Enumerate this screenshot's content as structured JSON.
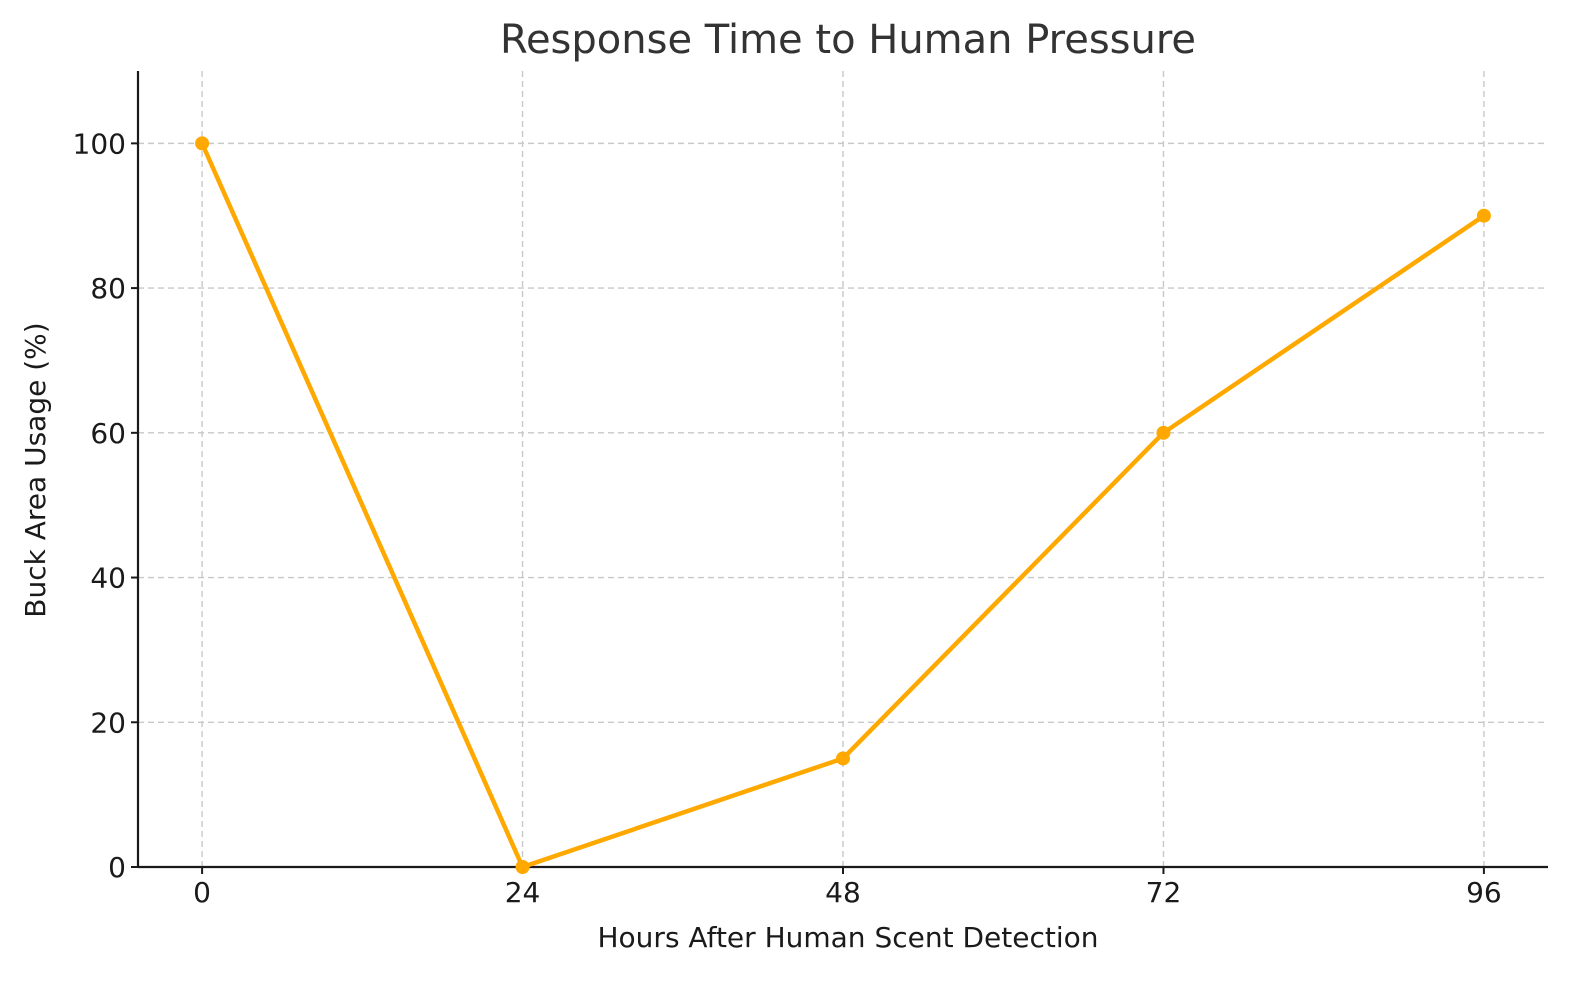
{
  "chart_data": {
    "type": "line",
    "title": "Response Time to Human Pressure",
    "xlabel": "Hours After Human Scent Detection",
    "ylabel": "Buck Area Usage (%)",
    "x": [
      0,
      24,
      48,
      72,
      96
    ],
    "x_ticks": [
      "0",
      "24",
      "48",
      "72",
      "96"
    ],
    "y_ticks": [
      "0",
      "20",
      "40",
      "60",
      "80",
      "100"
    ],
    "xlim": [
      -4.8,
      100.8
    ],
    "ylim": [
      0,
      110
    ],
    "grid": true,
    "series": [
      {
        "values": [
          100,
          0,
          15,
          60,
          90
        ],
        "color": "#FFA900",
        "marker": "circle"
      }
    ]
  }
}
